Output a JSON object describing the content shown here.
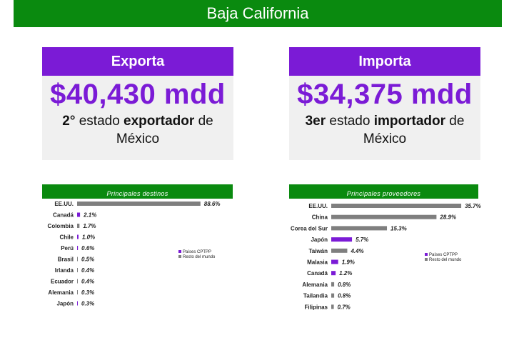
{
  "page": {
    "title": "Baja California"
  },
  "export": {
    "label": "Exporta",
    "amount": "$40,430 mdd",
    "rank": "2°",
    "text_a": "estado",
    "text_b": "exportador",
    "text_c": "de",
    "text_d": "México"
  },
  "import": {
    "label": "Importa",
    "amount": "$34,375 mdd",
    "rank": "3er",
    "text_a": "estado",
    "text_b": "importador",
    "text_c": "de",
    "text_d": "México"
  },
  "colors": {
    "green": "#0a8a0f",
    "purple": "#7b1bd6",
    "gray": "#7f7f7f"
  },
  "chart_data": [
    {
      "type": "bar",
      "orientation": "horizontal",
      "title": "Principales destinos",
      "categories": [
        "EE.UU.",
        "Canadá",
        "Colombia",
        "Chile",
        "Perú",
        "Brasil",
        "Irlanda",
        "Ecuador",
        "Alemania",
        "Japón"
      ],
      "values": [
        88.6,
        2.1,
        1.7,
        1.0,
        0.6,
        0.5,
        0.4,
        0.4,
        0.3,
        0.3
      ],
      "labels": [
        "88.6%",
        "2.1%",
        "1.7%",
        "1.0%",
        "0.6%",
        "0.5%",
        "0.4%",
        "0.4%",
        "0.3%",
        "0.3%"
      ],
      "groups": [
        "other",
        "cptpp",
        "other",
        "cptpp",
        "cptpp",
        "other",
        "other",
        "other",
        "other",
        "cptpp"
      ],
      "legend": [
        "Países CPTPP",
        "Resto del mundo"
      ],
      "xlim": [
        0,
        100
      ]
    },
    {
      "type": "bar",
      "orientation": "horizontal",
      "title": "Principales proveedores",
      "categories": [
        "EE.UU.",
        "China",
        "Corea del Sur",
        "Japón",
        "Taiwán",
        "Malasia",
        "Canadá",
        "Alemania",
        "Tailandia",
        "Filipinas"
      ],
      "values": [
        35.7,
        28.9,
        15.3,
        5.7,
        4.4,
        1.9,
        1.2,
        0.8,
        0.8,
        0.7
      ],
      "labels": [
        "35.7%",
        "28.9%",
        "15.3%",
        "5.7%",
        "4.4%",
        "1.9%",
        "1.2%",
        "0.8%",
        "0.8%",
        "0.7%"
      ],
      "groups": [
        "other",
        "other",
        "other",
        "cptpp",
        "other",
        "cptpp",
        "cptpp",
        "other",
        "other",
        "other"
      ],
      "legend": [
        "Países CPTPP",
        "Resto del mundo"
      ],
      "xlim": [
        0,
        40
      ]
    }
  ]
}
